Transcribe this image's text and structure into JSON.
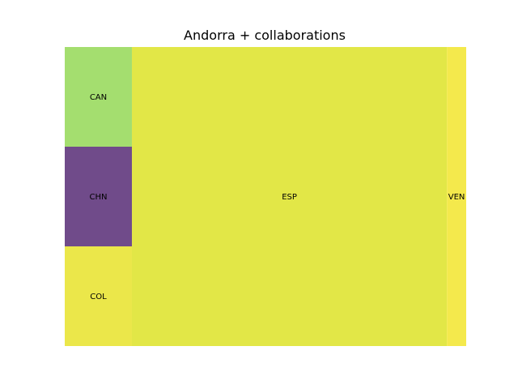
{
  "chart_data": {
    "type": "treemap",
    "title": "Andorra + collaborations",
    "tiles": [
      {
        "label": "CAN",
        "value": 2.9,
        "color": "#a4de6f"
      },
      {
        "label": "CHN",
        "value": 2.9,
        "color": "#704b8a"
      },
      {
        "label": "COL",
        "value": 2.9,
        "color": "#ebe74a"
      },
      {
        "label": "ESP",
        "value": 40.8,
        "color": "#e2e747"
      },
      {
        "label": "VEN",
        "value": 2.5,
        "color": "#f4e94c"
      }
    ]
  }
}
